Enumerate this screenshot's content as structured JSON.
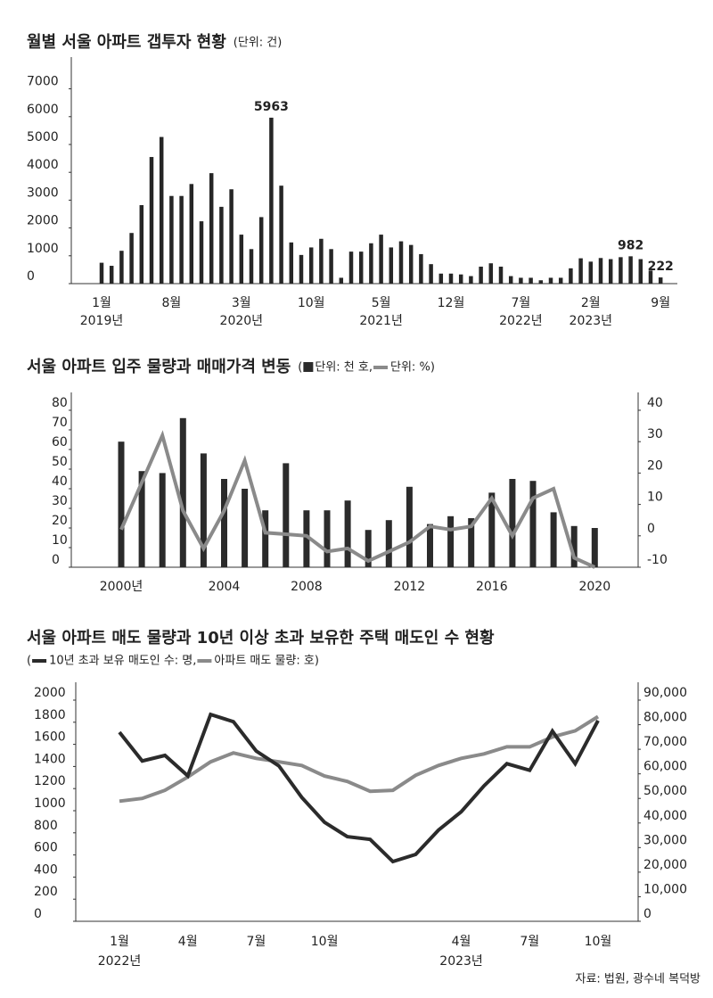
{
  "chart_data": [
    {
      "type": "bar",
      "title": "월별 서울 아파트 갭투자 현황",
      "subtitle": "(단위: 건)",
      "categories": [
        "1월",
        null,
        null,
        null,
        null,
        null,
        null,
        "8월",
        null,
        null,
        null,
        null,
        null,
        null,
        "3월",
        null,
        null,
        null,
        null,
        null,
        null,
        "10월",
        null,
        null,
        null,
        null,
        null,
        null,
        "5월",
        null,
        null,
        null,
        null,
        null,
        null,
        "12월",
        null,
        null,
        null,
        null,
        null,
        null,
        "7월",
        null,
        null,
        null,
        null,
        null,
        null,
        "2월",
        null,
        null,
        null,
        null,
        null,
        null,
        "9월"
      ],
      "category_years": [
        "2019년",
        null,
        null,
        null,
        null,
        null,
        null,
        null,
        null,
        null,
        null,
        null,
        null,
        null,
        "2020년",
        null,
        null,
        null,
        null,
        null,
        null,
        null,
        null,
        null,
        null,
        null,
        null,
        null,
        "2021년",
        null,
        null,
        null,
        null,
        null,
        null,
        null,
        null,
        null,
        null,
        null,
        null,
        null,
        "2022년",
        null,
        null,
        null,
        null,
        null,
        null,
        "2023년",
        null,
        null,
        null,
        null,
        null,
        null,
        null
      ],
      "values": [
        750,
        640,
        1180,
        1820,
        2820,
        4550,
        5270,
        3150,
        3150,
        3580,
        2240,
        3970,
        2760,
        3390,
        1760,
        1240,
        2390,
        5963,
        3520,
        1480,
        1030,
        1300,
        1610,
        1240,
        210,
        1150,
        1150,
        1450,
        1760,
        1300,
        1520,
        1390,
        1060,
        700,
        360,
        360,
        330,
        270,
        610,
        730,
        610,
        270,
        210,
        210,
        120,
        210,
        210,
        550,
        910,
        790,
        920,
        880,
        950,
        982,
        880,
        470,
        222
      ],
      "value_labels": [
        null,
        null,
        null,
        null,
        null,
        null,
        null,
        null,
        null,
        null,
        null,
        null,
        null,
        null,
        null,
        null,
        null,
        "5963",
        null,
        null,
        null,
        null,
        null,
        null,
        null,
        null,
        null,
        null,
        null,
        null,
        null,
        null,
        null,
        null,
        null,
        null,
        null,
        null,
        null,
        null,
        null,
        null,
        null,
        null,
        null,
        null,
        null,
        null,
        null,
        null,
        null,
        null,
        null,
        "982",
        null,
        null,
        "222"
      ],
      "color": "#262626",
      "ylim": [
        0,
        7500
      ],
      "yticks": [
        0,
        1000,
        2000,
        3000,
        4000,
        5000,
        6000,
        7000
      ]
    },
    {
      "type": "combo",
      "title": "서울 아파트 입주 물량과 매매가격 변동",
      "legend_separators": [
        "(",
        ", ",
        ")"
      ],
      "categories": [
        "2000년",
        null,
        null,
        null,
        null,
        "2004",
        null,
        null,
        null,
        "2008",
        null,
        null,
        null,
        null,
        "2012",
        null,
        null,
        null,
        "2016",
        null,
        null,
        null,
        null,
        "2020"
      ],
      "series": [
        {
          "name": "단위: 천 호",
          "type": "bar",
          "color": "#2b2b2b",
          "values": [
            64,
            49,
            48,
            76,
            58,
            45,
            40,
            29,
            53,
            29,
            29,
            34,
            19,
            24,
            41,
            22,
            26,
            25,
            38,
            45,
            44,
            28,
            21,
            20
          ]
        },
        {
          "name": "단위: %",
          "type": "line",
          "axis": "y2",
          "color": "#8a8a8a",
          "values": [
            2,
            17,
            32,
            8,
            -4,
            8,
            24,
            1,
            0.5,
            0,
            -5,
            -4,
            -8,
            -5,
            -2,
            3,
            2,
            3,
            12,
            0,
            12,
            15,
            -7,
            -10
          ]
        }
      ],
      "ylim": [
        0,
        80
      ],
      "yticks": [
        0,
        10,
        20,
        30,
        40,
        50,
        60,
        70,
        80
      ],
      "y2lim": [
        -10,
        40
      ],
      "y2ticks": [
        -10,
        0,
        10,
        20,
        30,
        40
      ]
    },
    {
      "type": "line",
      "title": "서울 아파트 매도 물량과 10년 이상 초과 보유한 주택 매도인 수 현황",
      "legend_separators": [
        "(",
        ", ",
        ")"
      ],
      "categories": [
        "1월",
        null,
        null,
        "4월",
        null,
        null,
        "7월",
        null,
        null,
        "10월",
        null,
        null,
        null,
        null,
        null,
        "4월",
        null,
        null,
        "7월",
        null,
        null,
        "10월"
      ],
      "category_years": [
        "2022년",
        null,
        null,
        null,
        null,
        null,
        null,
        null,
        null,
        null,
        null,
        null,
        null,
        null,
        null,
        "2023년",
        null,
        null,
        null,
        null,
        null,
        null
      ],
      "series": [
        {
          "name": "10년 초과 보유 매도인 수: 명",
          "type": "line",
          "color": "#2b2b2b",
          "values": [
            1710,
            1450,
            1500,
            1315,
            1870,
            1805,
            1540,
            1405,
            1120,
            895,
            765,
            740,
            540,
            605,
            825,
            990,
            1225,
            1425,
            1365,
            1720,
            1425,
            1815
          ]
        },
        {
          "name": "아파트 매도 물량: 호",
          "type": "line",
          "axis": "y2",
          "color": "#8a8a8a",
          "values": [
            48900,
            50000,
            53300,
            58700,
            64900,
            68500,
            66300,
            64900,
            63400,
            59100,
            56900,
            52900,
            53300,
            59400,
            63400,
            66300,
            68100,
            71000,
            71000,
            75000,
            77500,
            83300
          ]
        }
      ],
      "ylim": [
        0,
        2000
      ],
      "yticks": [
        0,
        200,
        400,
        600,
        800,
        1000,
        1200,
        1400,
        1600,
        1800,
        2000
      ],
      "y2lim": [
        0,
        90000
      ],
      "y2ticks": [
        0,
        {
          "value": 10000,
          "label": "10,000"
        },
        {
          "value": 20000,
          "label": "20,000"
        },
        {
          "value": 30000,
          "label": "30,000"
        },
        {
          "value": 40000,
          "label": "40,000"
        },
        {
          "value": 50000,
          "label": "50,000"
        },
        {
          "value": 60000,
          "label": "60,000"
        },
        {
          "value": 70000,
          "label": "70,000"
        },
        {
          "value": 80000,
          "label": "80,000"
        },
        {
          "value": 90000,
          "label": "90,000"
        }
      ]
    }
  ],
  "source": "자료: 법원, 광수네 복덕방"
}
